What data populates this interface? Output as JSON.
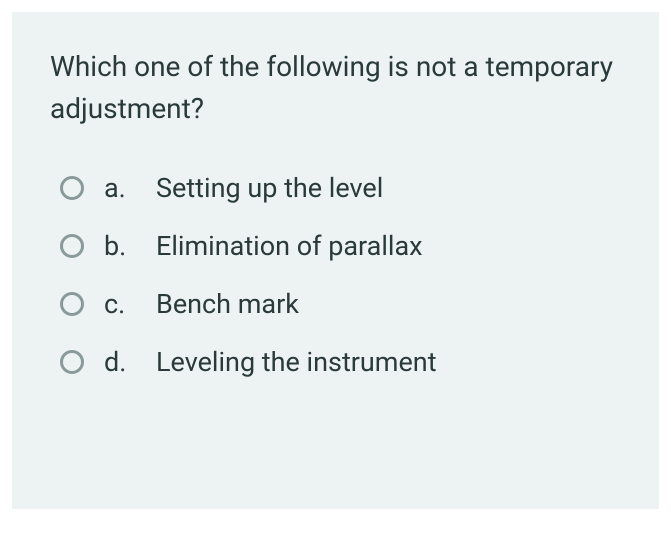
{
  "card": {
    "background_color": "#edf3f3"
  },
  "question": {
    "text": "Which one of the following is not a temporary adjustment?",
    "font_size": 28,
    "color": "#2a3a3a"
  },
  "options": [
    {
      "letter": "a.",
      "text": "Setting up the level",
      "selected": false
    },
    {
      "letter": "b.",
      "text": "Elimination of parallax",
      "selected": false
    },
    {
      "letter": "c.",
      "text": "Bench mark",
      "selected": false
    },
    {
      "letter": "d.",
      "text": "Leveling the instrument",
      "selected": false
    }
  ],
  "radio_style": {
    "border_color": "#8a9a9a",
    "border_width": 3,
    "size": 24
  },
  "option_style": {
    "font_size": 27,
    "color": "#2a3a3a",
    "gap": 26
  }
}
